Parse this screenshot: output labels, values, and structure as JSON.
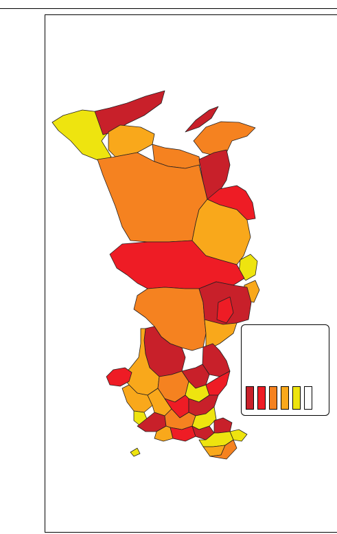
{
  "map": {
    "colors": {
      "dark_red": "#c8202a",
      "red": "#ee1c25",
      "orange": "#f58220",
      "light_orange": "#f9a81b",
      "yellow": "#eee40f",
      "white": "#ffffff",
      "border": "#231f20"
    },
    "legend": {
      "classes": [
        "dark_red",
        "red",
        "orange",
        "light_orange",
        "yellow",
        "white"
      ]
    }
  }
}
